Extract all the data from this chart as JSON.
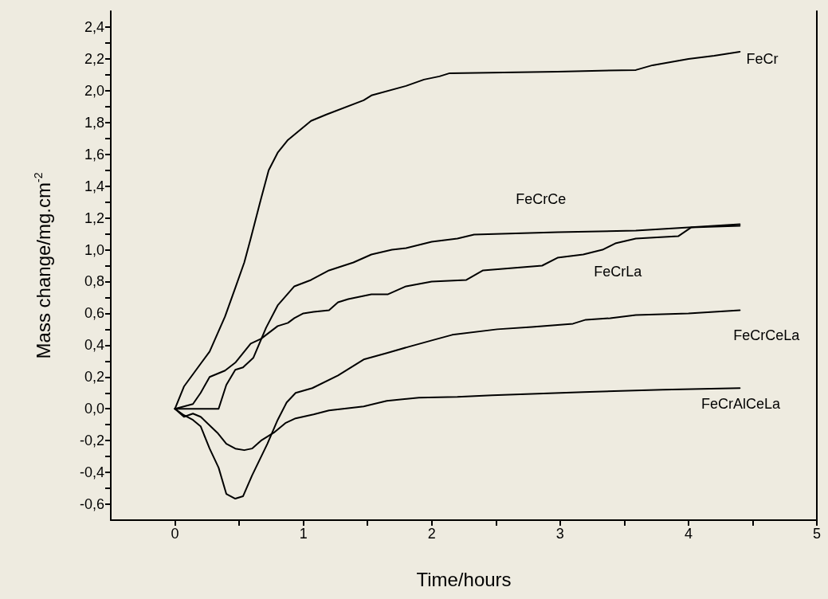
{
  "chart_data": {
    "type": "line",
    "xlabel": "Time/hours",
    "ylabel": "Mass change/mg.cm$^{-2}$",
    "xlim": [
      -0.5,
      5
    ],
    "xticks": [
      0,
      {
        "value": 0.5,
        "label": null
      },
      1,
      {
        "value": 1.5,
        "label": null
      },
      2,
      {
        "value": 2.5,
        "label": null
      },
      3,
      {
        "value": 3.5,
        "label": null
      },
      4,
      {
        "value": 4.5,
        "label": null
      },
      5
    ],
    "ylim": [
      -0.7,
      2.5
    ],
    "yticks": [
      {
        "value": -0.6,
        "label": "-0,6"
      },
      {
        "value": -0.5,
        "label": null
      },
      {
        "value": -0.4,
        "label": "-0,4"
      },
      {
        "value": -0.3,
        "label": null
      },
      {
        "value": -0.2,
        "label": "-0,2"
      },
      {
        "value": -0.1,
        "label": null
      },
      {
        "value": 0,
        "label": "0,0"
      },
      {
        "value": 0.1,
        "label": null
      },
      {
        "value": 0.2,
        "label": "0,2"
      },
      {
        "value": 0.3,
        "label": null
      },
      {
        "value": 0.4,
        "label": "0,4"
      },
      {
        "value": 0.5,
        "label": null
      },
      {
        "value": 0.6,
        "label": "0,6"
      },
      {
        "value": 0.7,
        "label": null
      },
      {
        "value": 0.8,
        "label": "0,8"
      },
      {
        "value": 0.9,
        "label": null
      },
      {
        "value": 1.0,
        "label": "1,0"
      },
      {
        "value": 1.1,
        "label": null
      },
      {
        "value": 1.2,
        "label": "1,2"
      },
      {
        "value": 1.3,
        "label": null
      },
      {
        "value": 1.4,
        "label": "1,4"
      },
      {
        "value": 1.5,
        "label": null
      },
      {
        "value": 1.6,
        "label": "1,6"
      },
      {
        "value": 1.7,
        "label": null
      },
      {
        "value": 1.8,
        "label": "1,8"
      },
      {
        "value": 1.9,
        "label": null
      },
      {
        "value": 2.0,
        "label": "2,0"
      },
      {
        "value": 2.1,
        "label": null
      },
      {
        "value": 2.2,
        "label": "2,2"
      },
      {
        "value": 2.3,
        "label": null
      },
      {
        "value": 2.4,
        "label": "2,4"
      }
    ],
    "marker": "none",
    "line_style": "solid",
    "series": [
      {
        "name": "FeCr",
        "color": "#000000",
        "x": [
          0,
          0.07,
          0.27,
          0.33,
          0.39,
          0.47,
          0.54,
          0.59,
          0.67,
          0.73,
          0.8,
          0.88,
          0.94,
          1.06,
          1.18,
          1.47,
          1.53,
          1.8,
          1.94,
          2.06,
          2.14,
          2.98,
          3.59,
          3.72,
          4.0,
          4.2,
          4.4
        ],
        "values": [
          0,
          0.14,
          0.36,
          0.47,
          0.58,
          0.76,
          0.92,
          1.07,
          1.32,
          1.5,
          1.61,
          1.69,
          1.73,
          1.81,
          1.85,
          1.94,
          1.97,
          2.03,
          2.07,
          2.09,
          2.11,
          2.12,
          2.13,
          2.16,
          2.2,
          2.22,
          2.245
        ]
      },
      {
        "name": "FeCrCe",
        "color": "#000000",
        "x": [
          0,
          0.34,
          0.4,
          0.47,
          0.53,
          0.61,
          0.71,
          0.8,
          0.93,
          1.06,
          1.2,
          1.39,
          1.53,
          1.69,
          1.8,
          2.0,
          2.2,
          2.33,
          2.98,
          3.59,
          4.0,
          4.4
        ],
        "values": [
          0,
          0,
          0.15,
          0.245,
          0.26,
          0.32,
          0.51,
          0.65,
          0.77,
          0.81,
          0.87,
          0.92,
          0.97,
          1.0,
          1.01,
          1.05,
          1.07,
          1.095,
          1.11,
          1.12,
          1.14,
          1.16
        ]
      },
      {
        "name": "FeCrLa",
        "color": "#000000",
        "x": [
          0,
          0.14,
          0.2,
          0.27,
          0.39,
          0.47,
          0.59,
          0.67,
          0.8,
          0.88,
          0.93,
          1.0,
          1.08,
          1.2,
          1.27,
          1.35,
          1.53,
          1.66,
          1.8,
          2.0,
          2.27,
          2.4,
          2.86,
          2.98,
          3.18,
          3.33,
          3.43,
          3.59,
          3.92,
          4.02,
          4.4
        ],
        "values": [
          0,
          0.03,
          0.1,
          0.2,
          0.24,
          0.29,
          0.41,
          0.44,
          0.52,
          0.54,
          0.57,
          0.6,
          0.61,
          0.62,
          0.67,
          0.69,
          0.72,
          0.72,
          0.77,
          0.8,
          0.81,
          0.87,
          0.9,
          0.95,
          0.97,
          1.0,
          1.04,
          1.07,
          1.085,
          1.14,
          1.15
        ]
      },
      {
        "name": "FeCrCeLa",
        "color": "#000000",
        "x": [
          0,
          0.07,
          0.14,
          0.2,
          0.27,
          0.34,
          0.4,
          0.47,
          0.53,
          0.6,
          0.72,
          0.8,
          0.87,
          0.94,
          1.07,
          1.27,
          1.47,
          1.65,
          1.82,
          2.0,
          2.16,
          2.51,
          2.78,
          3.1,
          3.2,
          3.39,
          3.59,
          4.0,
          4.4
        ],
        "values": [
          0,
          -0.04,
          -0.07,
          -0.11,
          -0.25,
          -0.37,
          -0.535,
          -0.565,
          -0.55,
          -0.42,
          -0.22,
          -0.07,
          0.04,
          0.1,
          0.13,
          0.21,
          0.31,
          0.35,
          0.39,
          0.43,
          0.465,
          0.5,
          0.515,
          0.535,
          0.56,
          0.57,
          0.59,
          0.6,
          0.62
        ]
      },
      {
        "name": "FeCrAlCeLa",
        "color": "#000000",
        "x": [
          0,
          0.07,
          0.14,
          0.2,
          0.33,
          0.4,
          0.47,
          0.54,
          0.6,
          0.67,
          0.77,
          0.86,
          0.94,
          1.08,
          1.2,
          1.47,
          1.65,
          1.9,
          2.2,
          2.47,
          3.18,
          3.8,
          4.4
        ],
        "values": [
          0,
          -0.05,
          -0.03,
          -0.05,
          -0.15,
          -0.22,
          -0.25,
          -0.26,
          -0.25,
          -0.2,
          -0.15,
          -0.09,
          -0.06,
          -0.035,
          -0.01,
          0.015,
          0.05,
          0.07,
          0.075,
          0.085,
          0.105,
          0.12,
          0.13
        ]
      }
    ]
  }
}
